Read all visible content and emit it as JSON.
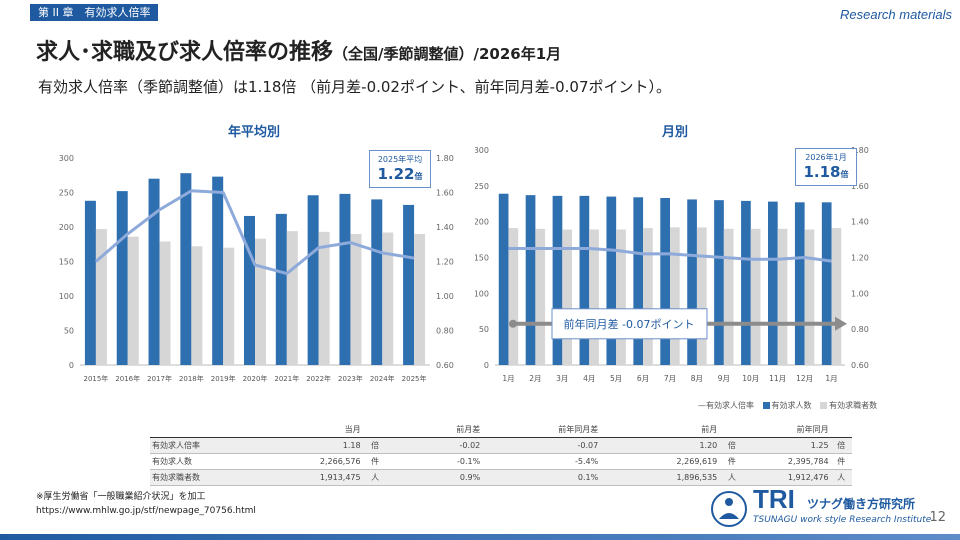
{
  "header": {
    "chapter": "第 II 章　有効求人倍率",
    "research_tag": "Research materials",
    "title_main": "求人･求職及び求人倍率の推移",
    "title_paren": "（全国/季節調整値）",
    "title_date": "/2026年1月",
    "subtitle": "有効求人倍率（季節調整値）は1.18倍 （前月差-0.02ポイント、前年同月差-0.07ポイント）。"
  },
  "colors": {
    "openings": "#2e6fb0",
    "seekers": "#d6d6d6",
    "ratio": "#8eaadb",
    "accent": "#1f5aa0"
  },
  "chart_data": [
    {
      "type": "bar",
      "title": "年平均別",
      "categories": [
        "2015年",
        "2016年",
        "2017年",
        "2018年",
        "2019年",
        "2020年",
        "2021年",
        "2022年",
        "2023年",
        "2024年",
        "2025年"
      ],
      "series": [
        {
          "name": "有効求人数",
          "values": [
            238,
            252,
            270,
            278,
            273,
            216,
            219,
            246,
            248,
            240,
            232
          ]
        },
        {
          "name": "有効求職者数",
          "values": [
            197,
            186,
            179,
            172,
            170,
            183,
            194,
            193,
            190,
            192,
            190
          ]
        },
        {
          "name": "有効求人倍率",
          "axis": "right",
          "values": [
            1.2,
            1.36,
            1.5,
            1.61,
            1.6,
            1.18,
            1.13,
            1.28,
            1.31,
            1.25,
            1.22
          ]
        }
      ],
      "ylim": [
        0,
        300
      ],
      "yticks": [
        "0",
        "50",
        "100",
        "150",
        "200",
        "250",
        "300"
      ],
      "y2lim": [
        0.6,
        1.8
      ],
      "y2ticks": [
        "0.60",
        "0.80",
        "1.00",
        "1.20",
        "1.40",
        "1.60",
        "1.80"
      ],
      "callout": {
        "label": "2025年平均",
        "value": "1.22",
        "unit": "倍"
      }
    },
    {
      "type": "bar",
      "title": "月別",
      "categories": [
        "1月",
        "2月",
        "3月",
        "4月",
        "5月",
        "6月",
        "7月",
        "8月",
        "9月",
        "10月",
        "11月",
        "12月",
        "1月"
      ],
      "series": [
        {
          "name": "有効求人数",
          "values": [
            239,
            237,
            236,
            236,
            235,
            234,
            233,
            231,
            230,
            229,
            228,
            227,
            227
          ]
        },
        {
          "name": "有効求職者数",
          "values": [
            191,
            190,
            189,
            189,
            189,
            191,
            192,
            192,
            190,
            190,
            190,
            189,
            191
          ]
        },
        {
          "name": "有効求人倍率",
          "axis": "right",
          "values": [
            1.25,
            1.25,
            1.25,
            1.25,
            1.24,
            1.22,
            1.22,
            1.21,
            1.2,
            1.19,
            1.19,
            1.2,
            1.18
          ]
        }
      ],
      "ylim": [
        0,
        300
      ],
      "yticks": [
        "0",
        "50",
        "100",
        "150",
        "200",
        "250",
        "300"
      ],
      "y2lim": [
        0.6,
        1.8
      ],
      "y2ticks": [
        "0.60",
        "0.80",
        "1.00",
        "1.20",
        "1.40",
        "1.60",
        "1.80"
      ],
      "callout": {
        "label": "2026年1月",
        "value": "1.18",
        "unit": "倍"
      },
      "annotation": "前年同月差 -0.07ポイント"
    }
  ],
  "legend": {
    "ratio": "有効求人倍率",
    "openings": "有効求人数",
    "seekers": "有効求職者数"
  },
  "table": {
    "headers": [
      "",
      "当月",
      "",
      "前月差",
      "前年同月差",
      "前月",
      "",
      "前年同月",
      ""
    ],
    "rows": [
      [
        "有効求人倍率",
        "1.18",
        "倍",
        "-0.02",
        "-0.07",
        "1.20",
        "倍",
        "1.25",
        "倍"
      ],
      [
        "有効求人数",
        "2,266,576",
        "件",
        "-0.1%",
        "-5.4%",
        "2,269,619",
        "件",
        "2,395,784",
        "件"
      ],
      [
        "有効求職者数",
        "1,913,475",
        "人",
        "0.9%",
        "0.1%",
        "1,896,535",
        "人",
        "1,912,476",
        "人"
      ]
    ]
  },
  "source": {
    "note": "※厚生労働省「一般職業紹介状況」を加工",
    "url": "https://www.mhlw.go.jp/stf/newpage_70756.html"
  },
  "logo": {
    "mark": "TRI",
    "name_jp": "ツナグ働き方研究所",
    "name_en": "TSUNAGU work style Research Institute"
  },
  "page_number": "12"
}
